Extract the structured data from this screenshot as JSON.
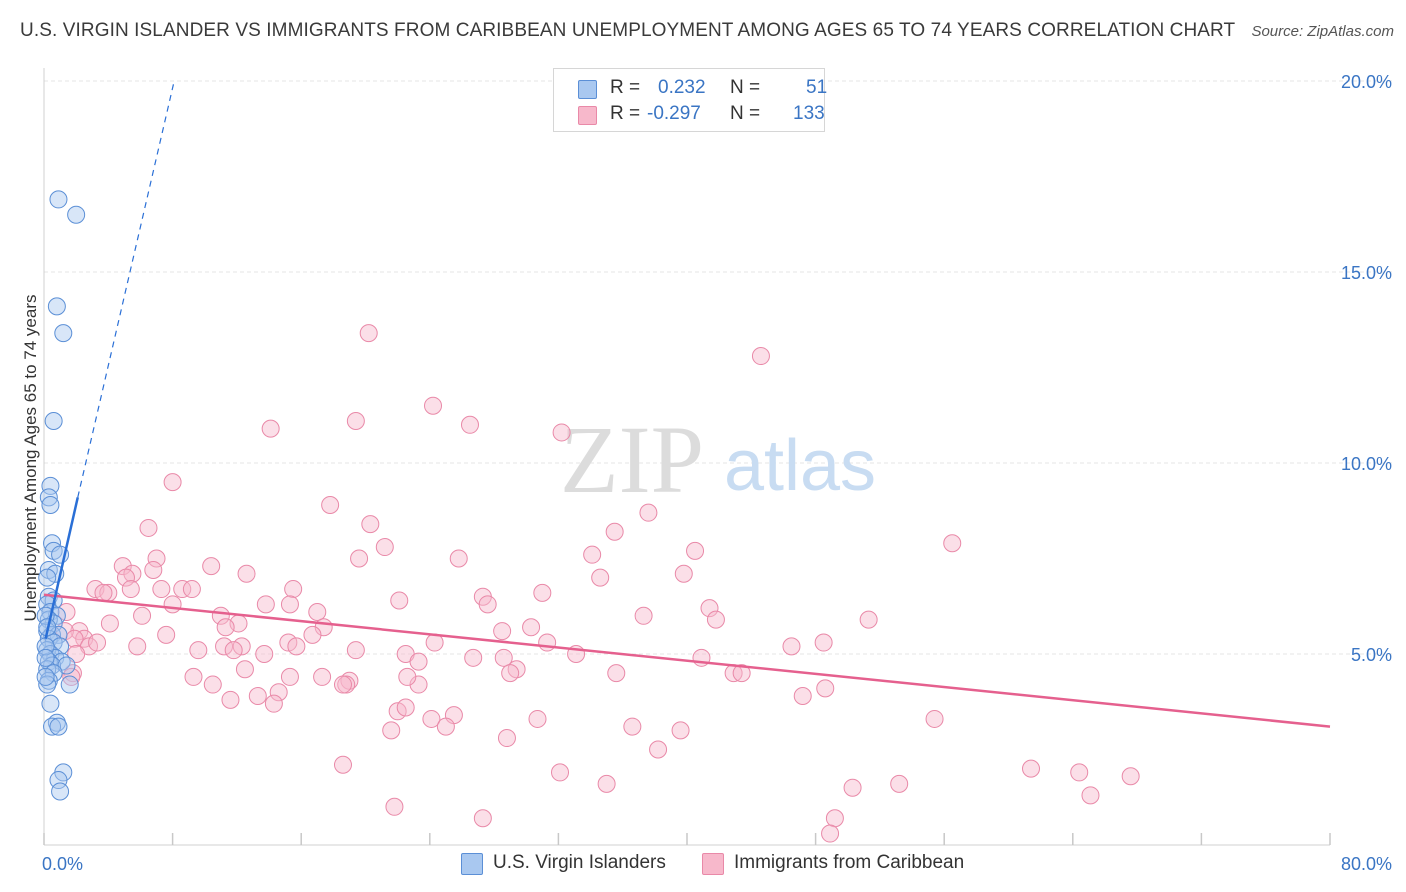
{
  "title": "U.S. VIRGIN ISLANDER VS IMMIGRANTS FROM CARIBBEAN UNEMPLOYMENT AMONG AGES 65 TO 74 YEARS CORRELATION CHART",
  "source": "Source: ZipAtlas.com",
  "watermark": {
    "zip": "ZIP",
    "atlas": "atlas"
  },
  "legend": {
    "r_label": "R =",
    "n_label": "N =",
    "series1": {
      "r": "0.232",
      "n": "51"
    },
    "series2": {
      "r": "-0.297",
      "n": "133"
    }
  },
  "colors": {
    "blue_fill": "#a9c8f0",
    "blue_stroke": "#5b8fd6",
    "blue_line": "#2a6fd6",
    "pink_fill": "#f7b8cb",
    "pink_stroke": "#e989a8",
    "pink_line": "#e5608e",
    "tick_text": "#3a75c4",
    "grid": "#e6e6e6"
  },
  "chart_data": {
    "type": "scatter",
    "title": "U.S. VIRGIN ISLANDER VS IMMIGRANTS FROM CARIBBEAN UNEMPLOYMENT AMONG AGES 65 TO 74 YEARS CORRELATION CHART",
    "xlabel": "",
    "ylabel": "Unemployment Among Ages 65 to 74 years",
    "xlim": [
      0,
      80
    ],
    "ylim": [
      0,
      20.5
    ],
    "x_tick_labels": [
      "0.0%",
      "80.0%"
    ],
    "y_tick_labels": [
      "5.0%",
      "10.0%",
      "15.0%",
      "20.0%"
    ],
    "y_ticks": [
      5,
      10,
      15,
      20
    ],
    "x_minor_ticks": [
      0,
      8,
      16,
      24,
      32,
      40,
      48,
      56,
      64,
      72,
      80
    ],
    "grid": true,
    "legend_position": "top-center",
    "series": [
      {
        "name": "U.S. Virgin Islanders",
        "color": "#5b8fd6",
        "trendline": {
          "x": [
            0.1,
            2.1
          ],
          "y": [
            5.4,
            9.1
          ],
          "dashed_to": [
            8.1,
            20.0
          ]
        },
        "points": [
          [
            0.9,
            16.9
          ],
          [
            2.0,
            16.5
          ],
          [
            0.8,
            14.1
          ],
          [
            1.2,
            13.4
          ],
          [
            0.6,
            11.1
          ],
          [
            0.4,
            9.4
          ],
          [
            0.3,
            9.1
          ],
          [
            0.4,
            8.9
          ],
          [
            0.5,
            7.9
          ],
          [
            0.6,
            7.7
          ],
          [
            1.0,
            7.6
          ],
          [
            0.3,
            7.2
          ],
          [
            0.7,
            7.1
          ],
          [
            0.3,
            6.5
          ],
          [
            0.6,
            6.4
          ],
          [
            0.2,
            6.3
          ],
          [
            0.4,
            6.1
          ],
          [
            0.8,
            6.0
          ],
          [
            0.3,
            5.9
          ],
          [
            0.6,
            5.8
          ],
          [
            0.2,
            5.6
          ],
          [
            0.5,
            5.5
          ],
          [
            0.9,
            5.5
          ],
          [
            0.3,
            5.4
          ],
          [
            0.6,
            5.3
          ],
          [
            1.0,
            5.2
          ],
          [
            0.2,
            5.1
          ],
          [
            0.4,
            5.0
          ],
          [
            0.7,
            4.9
          ],
          [
            1.1,
            4.8
          ],
          [
            0.3,
            4.8
          ],
          [
            0.5,
            4.7
          ],
          [
            1.4,
            4.7
          ],
          [
            0.2,
            4.6
          ],
          [
            0.6,
            4.5
          ],
          [
            0.3,
            4.3
          ],
          [
            1.6,
            4.2
          ],
          [
            0.2,
            4.2
          ],
          [
            0.4,
            3.7
          ],
          [
            0.8,
            3.2
          ],
          [
            0.5,
            3.1
          ],
          [
            0.9,
            3.1
          ],
          [
            1.2,
            1.9
          ],
          [
            0.9,
            1.7
          ],
          [
            1.0,
            1.4
          ],
          [
            0.1,
            6.0
          ],
          [
            0.2,
            5.7
          ],
          [
            0.1,
            5.2
          ],
          [
            0.1,
            4.9
          ],
          [
            0.2,
            7.0
          ],
          [
            0.1,
            4.4
          ]
        ]
      },
      {
        "name": "Immigrants from Caribbean",
        "color": "#e989a8",
        "trendline": {
          "x": [
            0,
            80
          ],
          "y": [
            6.55,
            3.1
          ]
        },
        "points": [
          [
            20.2,
            13.4
          ],
          [
            44.6,
            12.8
          ],
          [
            24.2,
            11.5
          ],
          [
            19.4,
            11.1
          ],
          [
            26.5,
            11.0
          ],
          [
            14.1,
            10.9
          ],
          [
            32.2,
            10.8
          ],
          [
            8.0,
            9.5
          ],
          [
            17.8,
            8.9
          ],
          [
            37.6,
            8.7
          ],
          [
            20.3,
            8.4
          ],
          [
            6.5,
            8.3
          ],
          [
            35.5,
            8.2
          ],
          [
            56.5,
            7.9
          ],
          [
            21.2,
            7.8
          ],
          [
            40.5,
            7.7
          ],
          [
            34.1,
            7.6
          ],
          [
            19.6,
            7.5
          ],
          [
            25.8,
            7.5
          ],
          [
            7.0,
            7.5
          ],
          [
            4.9,
            7.3
          ],
          [
            10.4,
            7.3
          ],
          [
            6.8,
            7.2
          ],
          [
            12.6,
            7.1
          ],
          [
            39.8,
            7.1
          ],
          [
            5.5,
            7.1
          ],
          [
            5.1,
            7.0
          ],
          [
            34.6,
            7.0
          ],
          [
            3.2,
            6.7
          ],
          [
            15.5,
            6.7
          ],
          [
            5.4,
            6.7
          ],
          [
            7.3,
            6.7
          ],
          [
            8.6,
            6.7
          ],
          [
            9.2,
            6.7
          ],
          [
            4.0,
            6.6
          ],
          [
            3.7,
            6.6
          ],
          [
            27.3,
            6.5
          ],
          [
            31.0,
            6.6
          ],
          [
            22.1,
            6.4
          ],
          [
            8.0,
            6.3
          ],
          [
            13.8,
            6.3
          ],
          [
            15.3,
            6.3
          ],
          [
            27.6,
            6.3
          ],
          [
            41.4,
            6.2
          ],
          [
            1.4,
            6.1
          ],
          [
            17.0,
            6.1
          ],
          [
            11.0,
            6.0
          ],
          [
            37.3,
            6.0
          ],
          [
            6.1,
            6.0
          ],
          [
            41.8,
            5.9
          ],
          [
            51.3,
            5.9
          ],
          [
            12.1,
            5.8
          ],
          [
            4.1,
            5.8
          ],
          [
            17.4,
            5.7
          ],
          [
            11.3,
            5.7
          ],
          [
            30.3,
            5.7
          ],
          [
            28.5,
            5.6
          ],
          [
            2.2,
            5.6
          ],
          [
            1.3,
            5.6
          ],
          [
            16.7,
            5.5
          ],
          [
            7.6,
            5.5
          ],
          [
            2.5,
            5.4
          ],
          [
            1.9,
            5.4
          ],
          [
            24.3,
            5.3
          ],
          [
            15.2,
            5.3
          ],
          [
            2.8,
            5.2
          ],
          [
            31.3,
            5.3
          ],
          [
            46.5,
            5.2
          ],
          [
            48.5,
            5.3
          ],
          [
            11.2,
            5.2
          ],
          [
            12.3,
            5.2
          ],
          [
            15.7,
            5.2
          ],
          [
            19.4,
            5.1
          ],
          [
            22.5,
            5.0
          ],
          [
            11.8,
            5.1
          ],
          [
            13.7,
            5.0
          ],
          [
            33.1,
            5.0
          ],
          [
            2.0,
            5.0
          ],
          [
            28.6,
            4.9
          ],
          [
            40.9,
            4.9
          ],
          [
            26.7,
            4.9
          ],
          [
            23.3,
            4.8
          ],
          [
            12.5,
            4.6
          ],
          [
            29.4,
            4.6
          ],
          [
            29.0,
            4.5
          ],
          [
            35.6,
            4.5
          ],
          [
            1.8,
            4.5
          ],
          [
            42.9,
            4.5
          ],
          [
            43.4,
            4.5
          ],
          [
            9.3,
            4.4
          ],
          [
            15.3,
            4.4
          ],
          [
            17.3,
            4.4
          ],
          [
            19.0,
            4.3
          ],
          [
            18.8,
            4.2
          ],
          [
            18.6,
            4.2
          ],
          [
            23.3,
            4.2
          ],
          [
            22.6,
            4.4
          ],
          [
            1.7,
            4.4
          ],
          [
            10.5,
            4.2
          ],
          [
            14.6,
            4.0
          ],
          [
            13.3,
            3.9
          ],
          [
            47.2,
            3.9
          ],
          [
            48.6,
            4.1
          ],
          [
            14.3,
            3.7
          ],
          [
            11.6,
            3.8
          ],
          [
            22.0,
            3.5
          ],
          [
            22.5,
            3.6
          ],
          [
            25.5,
            3.4
          ],
          [
            24.1,
            3.3
          ],
          [
            30.7,
            3.3
          ],
          [
            55.4,
            3.3
          ],
          [
            25.0,
            3.1
          ],
          [
            36.6,
            3.1
          ],
          [
            39.6,
            3.0
          ],
          [
            21.6,
            3.0
          ],
          [
            28.8,
            2.8
          ],
          [
            38.2,
            2.5
          ],
          [
            18.6,
            2.1
          ],
          [
            61.4,
            2.0
          ],
          [
            64.4,
            1.9
          ],
          [
            32.1,
            1.9
          ],
          [
            67.6,
            1.8
          ],
          [
            35.0,
            1.6
          ],
          [
            50.3,
            1.5
          ],
          [
            53.2,
            1.6
          ],
          [
            65.1,
            1.3
          ],
          [
            21.8,
            1.0
          ],
          [
            27.3,
            0.7
          ],
          [
            49.2,
            0.7
          ],
          [
            48.9,
            0.3
          ],
          [
            5.8,
            5.2
          ],
          [
            9.6,
            5.1
          ],
          [
            3.3,
            5.3
          ]
        ]
      }
    ]
  }
}
